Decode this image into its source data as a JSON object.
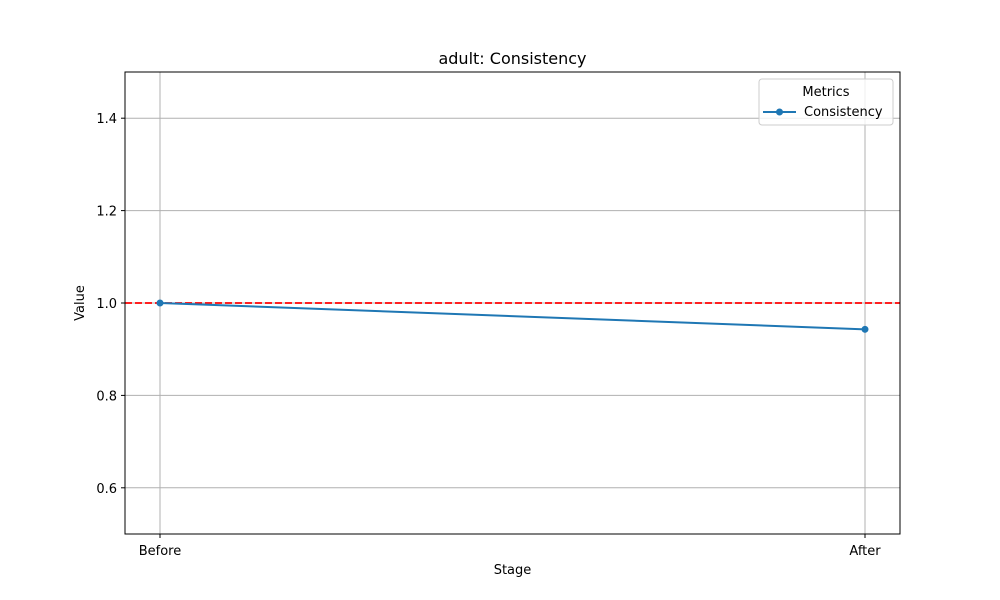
{
  "chart_data": {
    "type": "line",
    "title": "adult: Consistency",
    "xlabel": "Stage",
    "ylabel": "Value",
    "categories": [
      "Before",
      "After"
    ],
    "ylim": [
      0.5,
      1.5
    ],
    "yticks": [
      "0.6",
      "0.8",
      "1.0",
      "1.2",
      "1.4"
    ],
    "grid": true,
    "series": [
      {
        "name": "Consistency",
        "values": [
          1.0,
          0.943
        ],
        "color": "#1f77b4",
        "marker": "circle"
      }
    ],
    "reference_line": {
      "y": 1.0,
      "color": "#ff0000",
      "style": "dashed"
    },
    "legend": {
      "title": "Metrics",
      "placement": "top-right"
    }
  }
}
